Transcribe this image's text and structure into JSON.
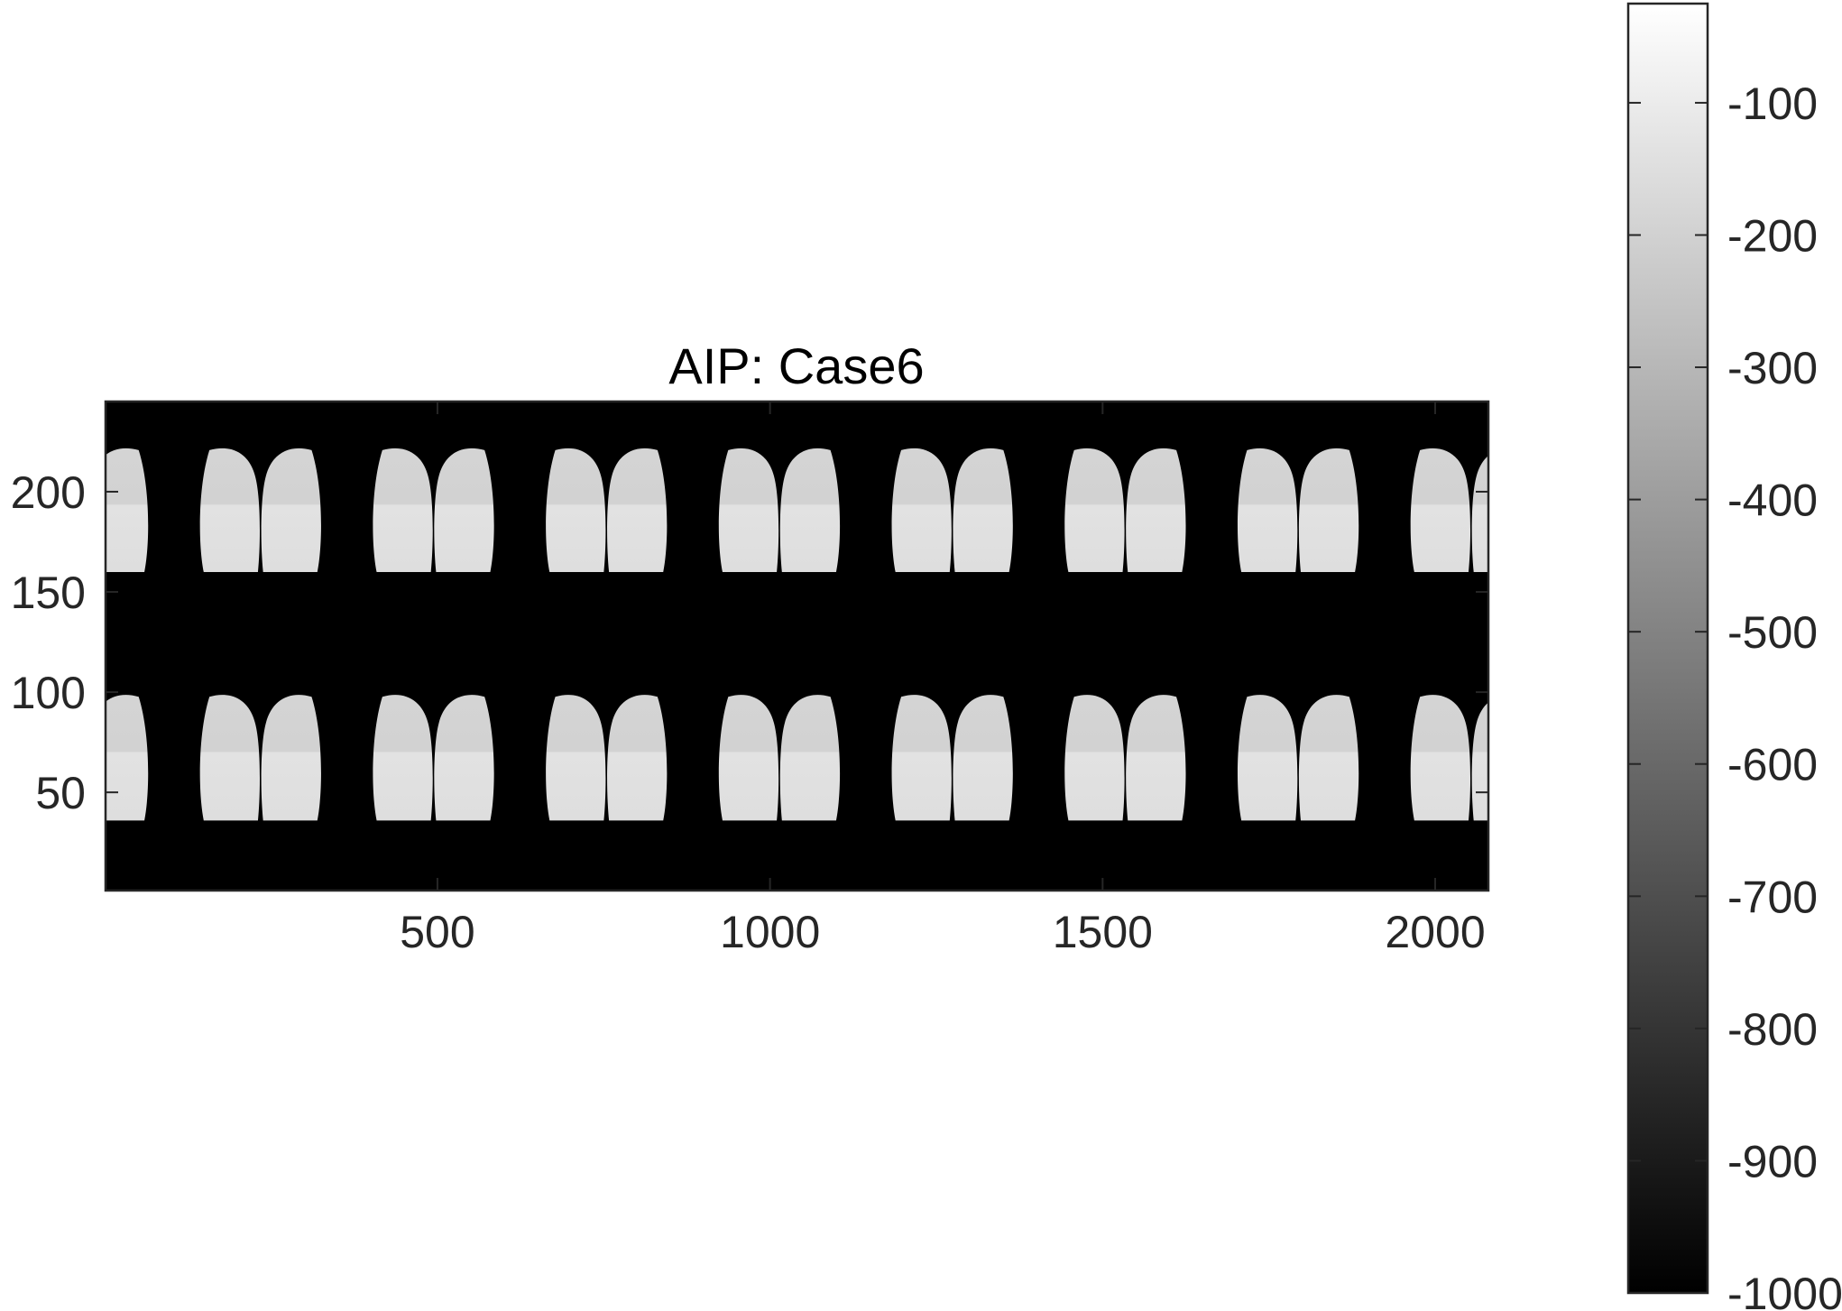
{
  "chart_data": {
    "type": "heatmap",
    "title": "AIP: Case6",
    "xlabel": "",
    "ylabel": "",
    "xlim": [
      1,
      2080
    ],
    "ylim": [
      1,
      245
    ],
    "x_ticks": [
      500,
      1000,
      1500,
      2000
    ],
    "x_tick_labels": [
      "500",
      "1000",
      "1500",
      "2000"
    ],
    "y_ticks": [
      50,
      100,
      150,
      200
    ],
    "y_tick_labels": [
      "50",
      "100",
      "150",
      "200"
    ],
    "y_direction": "normal",
    "colormap": "gray",
    "colorbar": {
      "position": "right",
      "range": [
        -1000,
        -25
      ],
      "ticks": [
        -100,
        -200,
        -300,
        -400,
        -500,
        -600,
        -700,
        -800,
        -900,
        -1000
      ],
      "tick_labels": [
        "-100",
        "-200",
        "-300",
        "-400",
        "-500",
        "-600",
        "-700",
        "-800",
        "-900",
        "-1000"
      ]
    },
    "image_content": {
      "description_rows": 2,
      "lung_pairs_per_row": 8,
      "tile_width": 260,
      "row_y_ranges": [
        [
          158,
          222
        ],
        [
          34,
          99
        ]
      ],
      "background_value": -1000,
      "lung_value_range": [
        -230,
        -140
      ]
    },
    "grid": false
  }
}
